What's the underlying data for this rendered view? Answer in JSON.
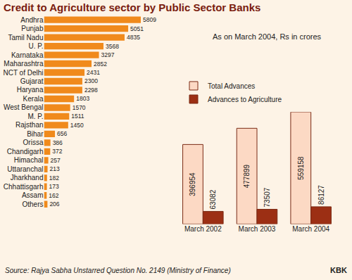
{
  "chart_data": [
    {
      "type": "bar",
      "title": "Credit to Agriculture sector by Public Sector Banks",
      "subtitle": "As on March 2004, Rs in crores",
      "annotations": [
        "Source: Rajya Sabha Unstarred Question No. 2149 (Ministry of Finance)",
        "KBK"
      ],
      "orientation": "horizontal",
      "categories": [
        "Andhra",
        "Punjab",
        "Tamil Nadu",
        "U. P.",
        "Karnataka",
        "Maharashtra",
        "NCT of Delhi",
        "Gujarat",
        "Haryana",
        "Kerala",
        "West Bengal",
        "M. P.",
        "Rajsthan",
        "Bihar",
        "Orissa",
        "Chandigarh",
        "Himachal",
        "Uttaranchal",
        "Jharkhand",
        "Chhattisgarh",
        "Assam",
        "Others"
      ],
      "values": [
        5809,
        5051,
        4835,
        3568,
        3297,
        2852,
        2431,
        2300,
        2298,
        1803,
        1570,
        1511,
        1450,
        656,
        386,
        372,
        257,
        213,
        182,
        173,
        162,
        206
      ],
      "color": "#f08a1c",
      "data_labels": true,
      "tick_labels": "y",
      "grid": false
    },
    {
      "type": "bar",
      "categories": [
        "March 2002",
        "March 2003",
        "March 2004"
      ],
      "series": [
        {
          "name": "Total Advances",
          "color": "#fcd9c4",
          "values": [
            396954,
            477899,
            559158
          ]
        },
        {
          "name": "Advances to Agriculture",
          "color": "#9c2f14",
          "values": [
            63082,
            73507,
            86127
          ]
        }
      ],
      "data_labels": true,
      "tick_labels": "x",
      "legend": "top left",
      "grid": false
    }
  ]
}
